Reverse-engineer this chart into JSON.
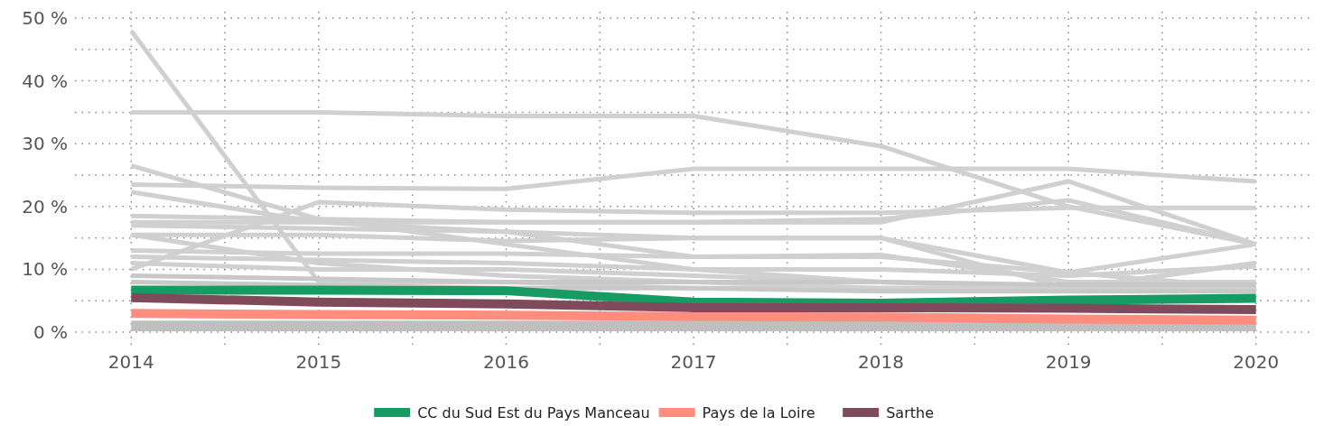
{
  "chart_data": {
    "type": "line",
    "x": [
      2014,
      2015,
      2016,
      2017,
      2018,
      2019,
      2020
    ],
    "xlim": [
      2013.7,
      2020.3
    ],
    "xticks": [
      2014,
      {
        "value": 2014.5,
        "label": null
      },
      2015,
      {
        "value": 2015.5,
        "label": null
      },
      2016,
      {
        "value": 2016.5,
        "label": null
      },
      2017,
      {
        "value": 2017.5,
        "label": null
      },
      2018,
      {
        "value": 2018.5,
        "label": null
      },
      2019,
      {
        "value": 2019.5,
        "label": null
      },
      2020
    ],
    "ylim": [
      -2,
      51
    ],
    "yticks": [
      {
        "value": 0,
        "label": "0 %"
      },
      {
        "value": 5,
        "label": null
      },
      {
        "value": 10,
        "label": "10 %"
      },
      {
        "value": 15,
        "label": null
      },
      {
        "value": 20,
        "label": "20 %"
      },
      {
        "value": 25,
        "label": null
      },
      {
        "value": 30,
        "label": "30 %"
      },
      {
        "value": 35,
        "label": null
      },
      {
        "value": 40,
        "label": "40 %"
      },
      {
        "value": 45,
        "label": null
      },
      {
        "value": 50,
        "label": "50 %"
      }
    ],
    "grid": true,
    "legend": "bottom",
    "marker": "none",
    "line_style": "solid",
    "series": [
      {
        "color": "#d0d0d0",
        "values": [
          48,
          8,
          8,
          7,
          7,
          7,
          7
        ]
      },
      {
        "color": "#d0d0d0",
        "values": [
          35,
          35,
          34.4,
          34.4,
          29.6,
          20,
          14
        ]
      },
      {
        "color": "#d0d0d0",
        "values": [
          23.5,
          23,
          22.8,
          26,
          26,
          26,
          24
        ]
      },
      {
        "color": "#d0d0d0",
        "values": [
          26.5,
          18,
          14,
          10,
          8,
          7,
          7
        ]
      },
      {
        "color": "#d0d0d0",
        "values": [
          22.3,
          17.5,
          16,
          12,
          12,
          9.5,
          7
        ]
      },
      {
        "color": "#d0d0d0",
        "values": [
          10,
          20.7,
          19.5,
          19,
          19,
          19.8,
          19.8
        ]
      },
      {
        "color": "#d0d0d0",
        "values": [
          18.5,
          18,
          17.5,
          17.5,
          17.5,
          24,
          14
        ]
      },
      {
        "color": "#d0d0d0",
        "values": [
          17.5,
          17.5,
          17.5,
          17.5,
          18,
          21,
          14
        ]
      },
      {
        "color": "#d0d0d0",
        "values": [
          17,
          16.5,
          16,
          15,
          15,
          7,
          11
        ]
      },
      {
        "color": "#d0d0d0",
        "values": [
          15.5,
          15.5,
          14.5,
          15,
          15,
          9.5,
          14
        ]
      },
      {
        "color": "#d0d0d0",
        "values": [
          15.5,
          11,
          9,
          8,
          7,
          7,
          11
        ]
      },
      {
        "color": "#d0d0d0",
        "values": [
          13,
          12.5,
          12.5,
          12,
          12.3,
          8,
          8
        ]
      },
      {
        "color": "#d0d0d0",
        "values": [
          12,
          11.5,
          11,
          10,
          10,
          9,
          10.5
        ]
      },
      {
        "color": "#d0d0d0",
        "values": [
          11,
          10,
          10,
          9,
          8,
          7,
          7
        ]
      },
      {
        "color": "#c8c8c8",
        "values": [
          9,
          8.5,
          8,
          8,
          8,
          7.5,
          7.5
        ]
      },
      {
        "color": "#c8c8c8",
        "values": [
          8,
          7.5,
          7,
          7,
          6.5,
          6.5,
          6.5
        ]
      },
      {
        "color": "#bfbfbf",
        "values": [
          1.5,
          1.5,
          1.5,
          1.5,
          1.5,
          1.5,
          1.5
        ]
      },
      {
        "color": "#bfbfbf",
        "values": [
          1,
          1,
          1,
          1,
          1,
          1,
          1
        ]
      },
      {
        "color": "#bfbfbf",
        "values": [
          0.5,
          0.5,
          0.5,
          0.5,
          0.5,
          0.5,
          0.5
        ]
      },
      {
        "name": "CC du Sud Est du Pays Manceau",
        "color": "#169b62",
        "values": [
          6.7,
          6.7,
          6.6,
          4.8,
          4.6,
          5.1,
          5.4
        ]
      },
      {
        "name": "Pays de la Loire",
        "color": "#ff8d7e",
        "values": [
          3,
          2.8,
          2.7,
          2.5,
          2.4,
          2.1,
          1.9
        ]
      },
      {
        "name": "Sarthe",
        "color": "#7f4a5c",
        "values": [
          5.5,
          4.8,
          4.5,
          3.9,
          3.9,
          3.8,
          3.6
        ]
      }
    ]
  }
}
